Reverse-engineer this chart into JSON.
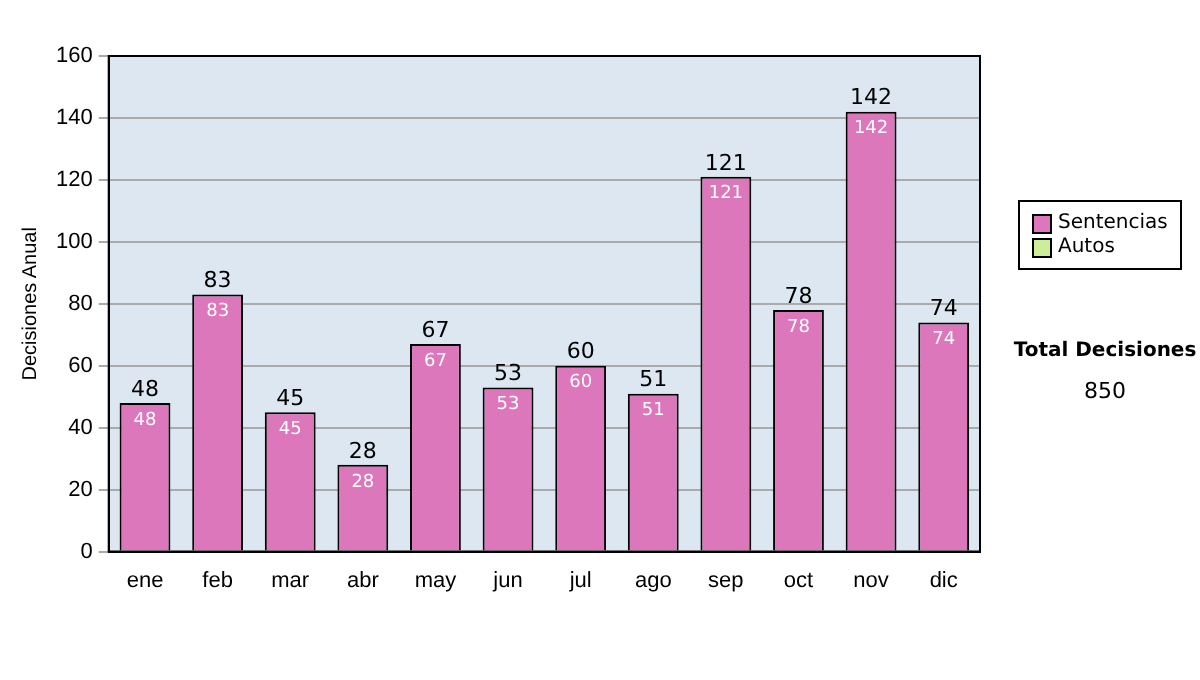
{
  "chart_data": {
    "type": "bar",
    "ylabel": "Decisiones Anual",
    "categories": [
      "ene",
      "feb",
      "mar",
      "abr",
      "may",
      "jun",
      "jul",
      "ago",
      "sep",
      "oct",
      "nov",
      "dic"
    ],
    "series": [
      {
        "name": "Sentencias",
        "color": "#dd77bb",
        "values": [
          48,
          83,
          45,
          28,
          67,
          53,
          60,
          51,
          121,
          78,
          142,
          74
        ],
        "value_labels": [
          "48",
          "83",
          "45",
          "28",
          "67",
          "53",
          "60",
          "51",
          "121",
          "78",
          "142",
          "74"
        ]
      },
      {
        "name": "Autos",
        "color": "#ccee99",
        "values": [
          0,
          0,
          0,
          0,
          0,
          0,
          0,
          0,
          0,
          0,
          0,
          0
        ]
      }
    ],
    "stacked": true,
    "totals": [
      "48",
      "83",
      "45",
      "28",
      "67",
      "53",
      "60",
      "51",
      "121",
      "78",
      "142",
      "74"
    ],
    "ylim": [
      0,
      160
    ],
    "yticks": [
      0,
      20,
      40,
      60,
      80,
      100,
      120,
      140,
      160
    ],
    "grid": "y",
    "legend": "right",
    "annotations": [
      "Total Decisiones",
      "850"
    ]
  }
}
